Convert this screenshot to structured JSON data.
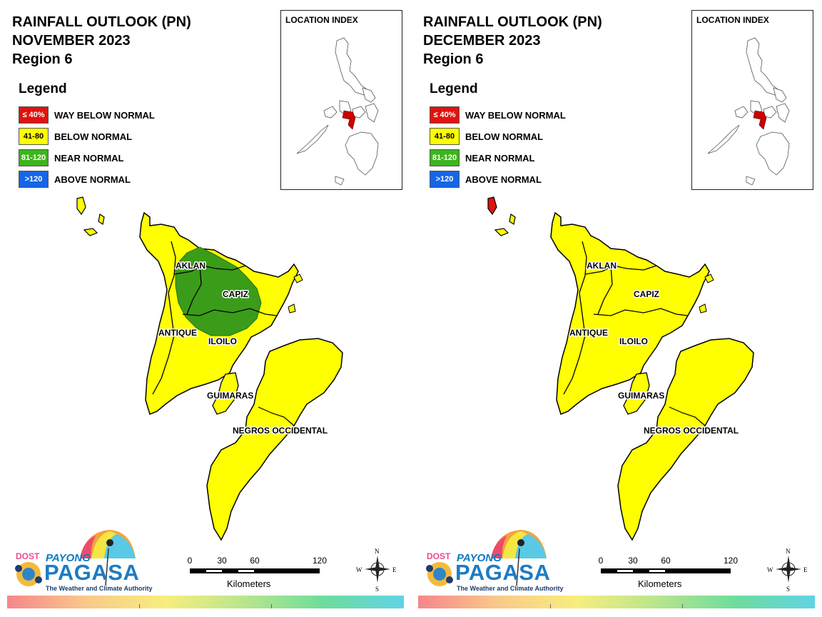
{
  "panels": [
    {
      "title_line1": "RAINFALL OUTLOOK (PN)",
      "title_line2": "NOVEMBER 2023",
      "title_line3": "Region 6",
      "near_normal_zone": true,
      "island_class": "below_normal",
      "labels": {
        "aklan": "AKLAN",
        "capiz": "CAPIZ",
        "antique": "ANTIQUE",
        "iloilo": "ILOILO",
        "guimaras": "GUIMARAS",
        "negros": "NEGROS OCCIDENTAL"
      }
    },
    {
      "title_line1": "RAINFALL OUTLOOK (PN)",
      "title_line2": "DECEMBER 2023",
      "title_line3": "Region 6",
      "near_normal_zone": false,
      "island_class": "way_below_normal",
      "labels": {
        "aklan": "AKLAN",
        "capiz": "CAPIZ",
        "antique": "ANTIQUE",
        "iloilo": "ILOILO",
        "guimaras": "GUIMARAS",
        "negros": "NEGROS OCCIDENTAL"
      }
    }
  ],
  "legend": {
    "title": "Legend",
    "items": [
      {
        "range": "≤ 40%",
        "label": "WAY BELOW NORMAL",
        "color": "#e0120f",
        "text_color": "#ffffff"
      },
      {
        "range": "41-80",
        "label": "BELOW NORMAL",
        "color": "#ffff00",
        "text_color": "#000000"
      },
      {
        "range": "81-120",
        "label": "NEAR NORMAL",
        "color": "#3eb41c",
        "text_color": "#ffffff"
      },
      {
        "range": ">120",
        "label": "ABOVE NORMAL",
        "color": "#1565e6",
        "text_color": "#ffffff"
      }
    ]
  },
  "location_index": {
    "title": "LOCATION INDEX",
    "highlight_color": "#cc0000"
  },
  "scale": {
    "ticks": [
      "0",
      "30",
      "60",
      "120"
    ],
    "unit": "Kilometers"
  },
  "compass": {
    "n": "N",
    "s": "S",
    "e": "E",
    "w": "W"
  },
  "logo": {
    "dost": "DOST",
    "payong": "PAYONG",
    "pagasa": "PAGASA",
    "tagline": "The Weather and Climate Authority"
  },
  "colors": {
    "below_normal": "#ffff00",
    "near_normal": "#3b9c19",
    "way_below_normal": "#e0120f"
  }
}
